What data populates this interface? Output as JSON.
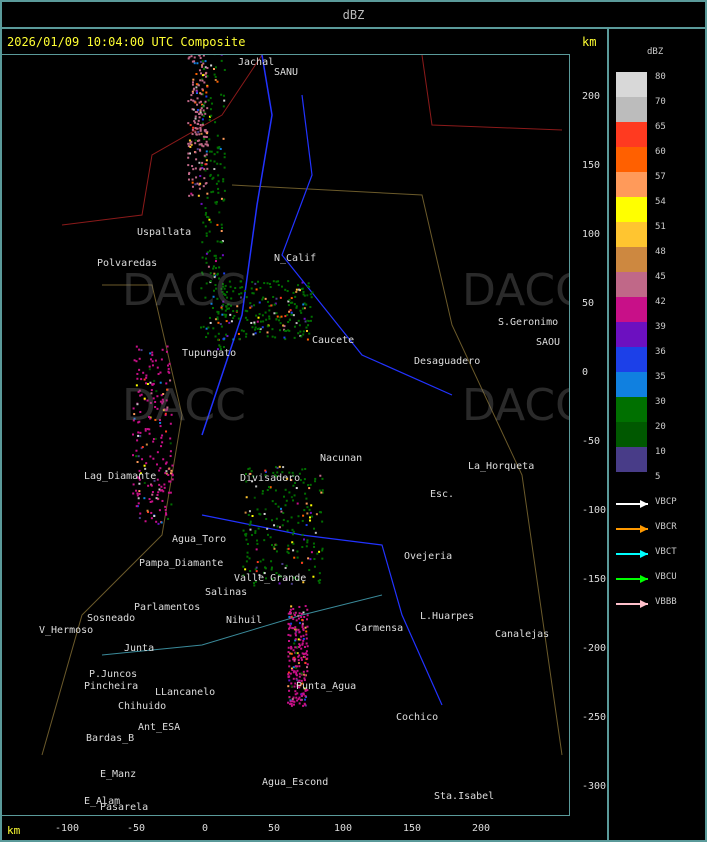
{
  "header": {
    "title": "dBZ"
  },
  "map": {
    "title": "2026/01/09 10:04:00 UTC Composite",
    "unit_label": "km",
    "watermark": "DACC",
    "y_ticks": [
      "200",
      "150",
      "100",
      "50",
      "0",
      "-50",
      "-100",
      "-150",
      "-200",
      "-250",
      "-300"
    ],
    "x_ticks": [
      "-100",
      "-50",
      "0",
      "50",
      "100",
      "150",
      "200"
    ],
    "places": [
      "Jachal",
      "SANU",
      "Uspallata",
      "Polvaredas",
      "N_Calif",
      "S.Geronimo",
      "SAOU",
      "Desaguadero",
      "Lag_Diamante",
      "Nacunan",
      "La_Horqueta",
      "Divisadero",
      "Agua_Toro",
      "Pampa_Diamante",
      "Valle_Grande",
      "Sosneado",
      "Parlamentos",
      "Ovejeria",
      "L.Huarpes",
      "Canalejas",
      "V_Hermoso",
      "Junta",
      "P.Juncos",
      "Pincheira",
      "LLancanelo",
      "Punta_Agua",
      "Chihuido",
      "Ant_ESA",
      "Bardas_B",
      "E_Manz",
      "E_Alam",
      "Pasarela",
      "Agua_Escond",
      "Cochico",
      "Sta.Isabel",
      "Carmensa",
      "Esc.",
      "Salinas",
      "Nihuil",
      "Tupungato",
      "Caucete"
    ]
  },
  "legend": {
    "title": "dBZ",
    "scale": [
      {
        "label": "80",
        "color": "#d8d8d8"
      },
      {
        "label": "70",
        "color": "#bcbcbc"
      },
      {
        "label": "65",
        "color": "#ff3a20"
      },
      {
        "label": "60",
        "color": "#ff6000"
      },
      {
        "label": "57",
        "color": "#ff9a5a"
      },
      {
        "label": "54",
        "color": "#ffff00"
      },
      {
        "label": "51",
        "color": "#ffc530"
      },
      {
        "label": "48",
        "color": "#cd8840"
      },
      {
        "label": "45",
        "color": "#c06888"
      },
      {
        "label": "42",
        "color": "#c81088"
      },
      {
        "label": "39",
        "color": "#6c10c0"
      },
      {
        "label": "36",
        "color": "#1c40e8"
      },
      {
        "label": "35",
        "color": "#1080e0"
      },
      {
        "label": "30",
        "color": "#007000"
      },
      {
        "label": "20",
        "color": "#005800"
      },
      {
        "label": "10",
        "color": "#483c88"
      },
      {
        "label": "5",
        "color": ""
      }
    ],
    "radars": [
      {
        "name": "VBCP",
        "color": "#ffffff"
      },
      {
        "name": "VBCR",
        "color": "#ff9900"
      },
      {
        "name": "VBCT",
        "color": "#00ffff"
      },
      {
        "name": "VBCU",
        "color": "#00ff00"
      },
      {
        "name": "VBBB",
        "color": "#ffc0cb"
      }
    ]
  }
}
